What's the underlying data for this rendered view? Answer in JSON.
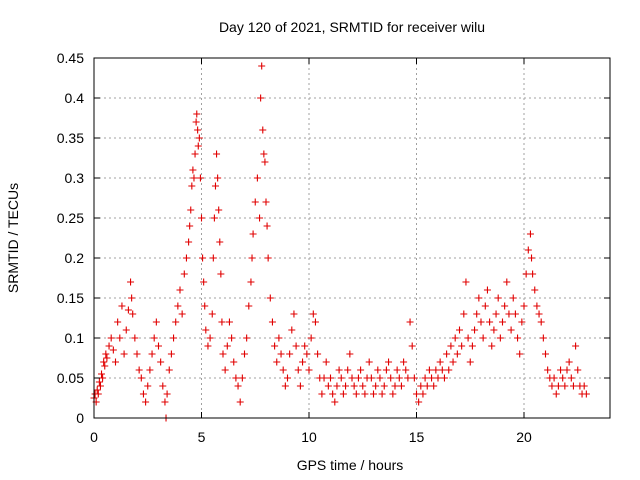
{
  "chart_data": {
    "type": "scatter",
    "title": "Day 120 of 2021, SRMTID for receiver wilu",
    "xlabel": "GPS time / hours",
    "ylabel": "SRMTID / TECUs",
    "xlim": [
      0,
      24
    ],
    "ylim": [
      0,
      0.45
    ],
    "x_ticks": [
      0,
      5,
      10,
      15,
      20
    ],
    "y_ticks": [
      0,
      0.05,
      0.1,
      0.15,
      0.2,
      0.25,
      0.3,
      0.35,
      0.4,
      0.45
    ],
    "x_tick_labels": [
      "0",
      "5",
      "10",
      "15",
      "20"
    ],
    "y_tick_labels": [
      "0",
      "0.05",
      "0.1",
      "0.15",
      "0.2",
      "0.25",
      "0.3",
      "0.35",
      "0.4",
      "0.45"
    ],
    "grid": true,
    "marker": "+",
    "color": "#e00000",
    "series": [
      {
        "name": "SRMTID",
        "points": [
          [
            0.0,
            0.025
          ],
          [
            0.05,
            0.03
          ],
          [
            0.1,
            0.02
          ],
          [
            0.15,
            0.035
          ],
          [
            0.2,
            0.03
          ],
          [
            0.25,
            0.045
          ],
          [
            0.3,
            0.04
          ],
          [
            0.35,
            0.055
          ],
          [
            0.4,
            0.05
          ],
          [
            0.45,
            0.07
          ],
          [
            0.5,
            0.065
          ],
          [
            0.55,
            0.08
          ],
          [
            0.6,
            0.075
          ],
          [
            0.7,
            0.09
          ],
          [
            0.8,
            0.1
          ],
          [
            0.9,
            0.085
          ],
          [
            1.0,
            0.07
          ],
          [
            1.1,
            0.12
          ],
          [
            1.2,
            0.1
          ],
          [
            1.3,
            0.14
          ],
          [
            1.4,
            0.08
          ],
          [
            1.5,
            0.11
          ],
          [
            1.6,
            0.135
          ],
          [
            1.7,
            0.17
          ],
          [
            1.75,
            0.15
          ],
          [
            1.8,
            0.13
          ],
          [
            1.9,
            0.1
          ],
          [
            2.0,
            0.08
          ],
          [
            2.1,
            0.06
          ],
          [
            2.2,
            0.05
          ],
          [
            2.3,
            0.03
          ],
          [
            2.4,
            0.02
          ],
          [
            2.5,
            0.04
          ],
          [
            2.6,
            0.06
          ],
          [
            2.7,
            0.08
          ],
          [
            2.8,
            0.1
          ],
          [
            2.9,
            0.12
          ],
          [
            3.0,
            0.09
          ],
          [
            3.1,
            0.07
          ],
          [
            3.2,
            0.04
          ],
          [
            3.3,
            0.02
          ],
          [
            3.35,
            0.0
          ],
          [
            3.4,
            0.03
          ],
          [
            3.5,
            0.06
          ],
          [
            3.6,
            0.08
          ],
          [
            3.7,
            0.1
          ],
          [
            3.8,
            0.12
          ],
          [
            3.9,
            0.14
          ],
          [
            4.0,
            0.16
          ],
          [
            4.1,
            0.13
          ],
          [
            4.2,
            0.18
          ],
          [
            4.3,
            0.2
          ],
          [
            4.4,
            0.22
          ],
          [
            4.45,
            0.24
          ],
          [
            4.5,
            0.26
          ],
          [
            4.55,
            0.29
          ],
          [
            4.6,
            0.31
          ],
          [
            4.65,
            0.3
          ],
          [
            4.7,
            0.33
          ],
          [
            4.75,
            0.37
          ],
          [
            4.78,
            0.38
          ],
          [
            4.82,
            0.36
          ],
          [
            4.85,
            0.34
          ],
          [
            4.9,
            0.35
          ],
          [
            4.95,
            0.3
          ],
          [
            5.0,
            0.25
          ],
          [
            5.05,
            0.2
          ],
          [
            5.1,
            0.17
          ],
          [
            5.15,
            0.14
          ],
          [
            5.2,
            0.11
          ],
          [
            5.3,
            0.09
          ],
          [
            5.4,
            0.1
          ],
          [
            5.5,
            0.13
          ],
          [
            5.55,
            0.2
          ],
          [
            5.6,
            0.25
          ],
          [
            5.65,
            0.29
          ],
          [
            5.7,
            0.33
          ],
          [
            5.75,
            0.3
          ],
          [
            5.8,
            0.26
          ],
          [
            5.85,
            0.22
          ],
          [
            5.9,
            0.18
          ],
          [
            5.95,
            0.12
          ],
          [
            6.0,
            0.08
          ],
          [
            6.1,
            0.06
          ],
          [
            6.2,
            0.09
          ],
          [
            6.3,
            0.12
          ],
          [
            6.4,
            0.1
          ],
          [
            6.5,
            0.07
          ],
          [
            6.6,
            0.05
          ],
          [
            6.7,
            0.04
          ],
          [
            6.8,
            0.02
          ],
          [
            6.9,
            0.05
          ],
          [
            7.0,
            0.08
          ],
          [
            7.1,
            0.1
          ],
          [
            7.2,
            0.14
          ],
          [
            7.3,
            0.17
          ],
          [
            7.35,
            0.2
          ],
          [
            7.4,
            0.23
          ],
          [
            7.5,
            0.27
          ],
          [
            7.6,
            0.3
          ],
          [
            7.7,
            0.25
          ],
          [
            7.75,
            0.4
          ],
          [
            7.8,
            0.44
          ],
          [
            7.85,
            0.36
          ],
          [
            7.9,
            0.33
          ],
          [
            7.95,
            0.32
          ],
          [
            8.0,
            0.27
          ],
          [
            8.05,
            0.24
          ],
          [
            8.1,
            0.2
          ],
          [
            8.2,
            0.15
          ],
          [
            8.3,
            0.12
          ],
          [
            8.4,
            0.09
          ],
          [
            8.5,
            0.07
          ],
          [
            8.6,
            0.1
          ],
          [
            8.7,
            0.08
          ],
          [
            8.8,
            0.06
          ],
          [
            8.9,
            0.04
          ],
          [
            9.0,
            0.05
          ],
          [
            9.1,
            0.08
          ],
          [
            9.2,
            0.11
          ],
          [
            9.3,
            0.13
          ],
          [
            9.4,
            0.09
          ],
          [
            9.5,
            0.06
          ],
          [
            9.6,
            0.04
          ],
          [
            9.7,
            0.07
          ],
          [
            9.8,
            0.09
          ],
          [
            9.9,
            0.08
          ],
          [
            10.0,
            0.06
          ],
          [
            10.1,
            0.1
          ],
          [
            10.2,
            0.13
          ],
          [
            10.3,
            0.12
          ],
          [
            10.4,
            0.08
          ],
          [
            10.5,
            0.05
          ],
          [
            10.6,
            0.03
          ],
          [
            10.7,
            0.05
          ],
          [
            10.8,
            0.07
          ],
          [
            10.9,
            0.04
          ],
          [
            11.0,
            0.05
          ],
          [
            11.1,
            0.03
          ],
          [
            11.2,
            0.02
          ],
          [
            11.3,
            0.04
          ],
          [
            11.4,
            0.06
          ],
          [
            11.5,
            0.05
          ],
          [
            11.6,
            0.03
          ],
          [
            11.7,
            0.04
          ],
          [
            11.8,
            0.06
          ],
          [
            11.9,
            0.08
          ],
          [
            12.0,
            0.05
          ],
          [
            12.1,
            0.04
          ],
          [
            12.2,
            0.03
          ],
          [
            12.3,
            0.05
          ],
          [
            12.4,
            0.06
          ],
          [
            12.5,
            0.04
          ],
          [
            12.6,
            0.03
          ],
          [
            12.7,
            0.05
          ],
          [
            12.8,
            0.07
          ],
          [
            12.9,
            0.05
          ],
          [
            13.0,
            0.03
          ],
          [
            13.1,
            0.04
          ],
          [
            13.2,
            0.06
          ],
          [
            13.3,
            0.05
          ],
          [
            13.4,
            0.03
          ],
          [
            13.5,
            0.04
          ],
          [
            13.6,
            0.06
          ],
          [
            13.7,
            0.07
          ],
          [
            13.8,
            0.05
          ],
          [
            13.9,
            0.03
          ],
          [
            14.0,
            0.04
          ],
          [
            14.1,
            0.06
          ],
          [
            14.2,
            0.05
          ],
          [
            14.3,
            0.04
          ],
          [
            14.4,
            0.07
          ],
          [
            14.5,
            0.06
          ],
          [
            14.6,
            0.05
          ],
          [
            14.7,
            0.12
          ],
          [
            14.8,
            0.09
          ],
          [
            14.9,
            0.05
          ],
          [
            15.0,
            0.03
          ],
          [
            15.1,
            0.02
          ],
          [
            15.2,
            0.04
          ],
          [
            15.3,
            0.03
          ],
          [
            15.4,
            0.05
          ],
          [
            15.5,
            0.04
          ],
          [
            15.6,
            0.06
          ],
          [
            15.7,
            0.05
          ],
          [
            15.8,
            0.04
          ],
          [
            15.9,
            0.06
          ],
          [
            16.0,
            0.05
          ],
          [
            16.1,
            0.07
          ],
          [
            16.2,
            0.06
          ],
          [
            16.3,
            0.05
          ],
          [
            16.4,
            0.08
          ],
          [
            16.5,
            0.06
          ],
          [
            16.6,
            0.09
          ],
          [
            16.7,
            0.07
          ],
          [
            16.8,
            0.1
          ],
          [
            16.9,
            0.08
          ],
          [
            17.0,
            0.11
          ],
          [
            17.1,
            0.09
          ],
          [
            17.2,
            0.13
          ],
          [
            17.3,
            0.17
          ],
          [
            17.4,
            0.1
          ],
          [
            17.5,
            0.07
          ],
          [
            17.6,
            0.09
          ],
          [
            17.7,
            0.11
          ],
          [
            17.8,
            0.13
          ],
          [
            17.9,
            0.15
          ],
          [
            18.0,
            0.12
          ],
          [
            18.1,
            0.1
          ],
          [
            18.2,
            0.14
          ],
          [
            18.3,
            0.16
          ],
          [
            18.4,
            0.12
          ],
          [
            18.5,
            0.09
          ],
          [
            18.6,
            0.11
          ],
          [
            18.7,
            0.13
          ],
          [
            18.8,
            0.15
          ],
          [
            18.9,
            0.1
          ],
          [
            19.0,
            0.12
          ],
          [
            19.1,
            0.14
          ],
          [
            19.2,
            0.17
          ],
          [
            19.3,
            0.13
          ],
          [
            19.4,
            0.11
          ],
          [
            19.5,
            0.15
          ],
          [
            19.6,
            0.13
          ],
          [
            19.7,
            0.1
          ],
          [
            19.8,
            0.08
          ],
          [
            19.9,
            0.12
          ],
          [
            20.0,
            0.14
          ],
          [
            20.1,
            0.18
          ],
          [
            20.2,
            0.21
          ],
          [
            20.3,
            0.23
          ],
          [
            20.35,
            0.2
          ],
          [
            20.4,
            0.18
          ],
          [
            20.5,
            0.16
          ],
          [
            20.6,
            0.14
          ],
          [
            20.7,
            0.13
          ],
          [
            20.8,
            0.12
          ],
          [
            20.9,
            0.1
          ],
          [
            21.0,
            0.08
          ],
          [
            21.1,
            0.06
          ],
          [
            21.2,
            0.05
          ],
          [
            21.3,
            0.04
          ],
          [
            21.4,
            0.05
          ],
          [
            21.5,
            0.03
          ],
          [
            21.6,
            0.04
          ],
          [
            21.7,
            0.06
          ],
          [
            21.8,
            0.05
          ],
          [
            21.9,
            0.04
          ],
          [
            22.0,
            0.06
          ],
          [
            22.1,
            0.07
          ],
          [
            22.2,
            0.05
          ],
          [
            22.3,
            0.04
          ],
          [
            22.4,
            0.09
          ],
          [
            22.5,
            0.06
          ],
          [
            22.6,
            0.04
          ],
          [
            22.7,
            0.03
          ],
          [
            22.8,
            0.04
          ],
          [
            22.9,
            0.03
          ]
        ]
      }
    ]
  }
}
